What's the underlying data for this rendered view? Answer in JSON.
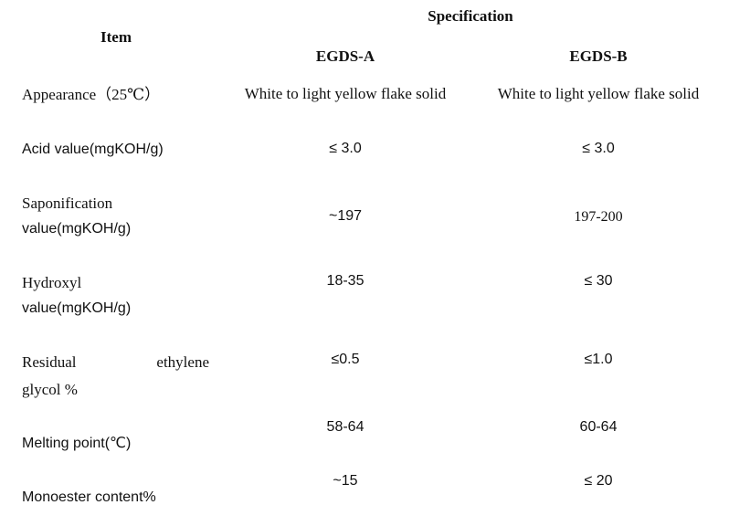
{
  "header": {
    "specification": "Specification",
    "item": "Item",
    "col_a": "EGDS-A",
    "col_b": "EGDS-B"
  },
  "rows": [
    {
      "label": [
        "Appearance（25℃）"
      ],
      "a": "White to light yellow flake solid",
      "b": "White to light yellow flake solid"
    },
    {
      "label": [
        "Acid value(mgKOH/g)"
      ],
      "a": "≤ 3.0",
      "b": "≤ 3.0"
    },
    {
      "label": [
        "Saponification",
        "value(mgKOH/g)"
      ],
      "a": "~197",
      "b": "197-200"
    },
    {
      "label": [
        "Hydroxyl",
        "value(mgKOH/g)"
      ],
      "a": "18-35",
      "b": "≤ 30"
    },
    {
      "label": [
        "Residual ethylene",
        "glycol %"
      ],
      "a": "≤0.5",
      "b": "≤1.0"
    },
    {
      "label": [
        "Melting point(℃)"
      ],
      "a": "58-64",
      "b": "60-64"
    },
    {
      "label": [
        "Monoester content%"
      ],
      "a": "~15",
      "b": "≤ 20"
    }
  ]
}
